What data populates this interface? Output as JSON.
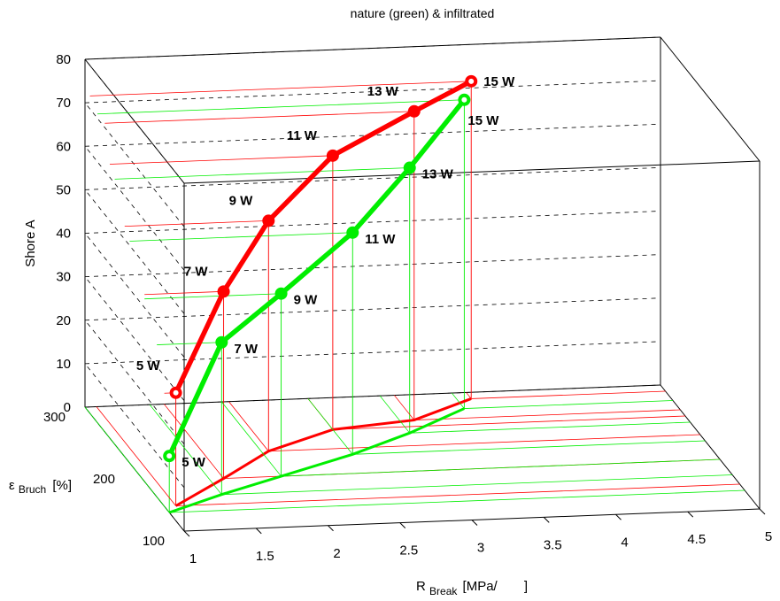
{
  "chart_data": {
    "type": "line",
    "title": "nature (green) & infiltrated",
    "zlabel": "Shore A",
    "ylabel_main": "ε",
    "ylabel_sub": "Bruch",
    "ylabel_unit": "[%]",
    "xlabel_main": "R",
    "xlabel_sub": "Break",
    "xlabel_unit": "[MPa/",
    "xlabel_close": "]",
    "xlim": [
      1,
      5
    ],
    "ylim": [
      100,
      300
    ],
    "zlim": [
      0,
      80
    ],
    "x_ticks": [
      "1",
      "1.5",
      "2",
      "2.5",
      "3",
      "3.5",
      "4",
      "4.5",
      "5"
    ],
    "y_ticks": [
      "100",
      "200",
      "300"
    ],
    "z_ticks": [
      "0",
      "10",
      "20",
      "30",
      "40",
      "50",
      "60",
      "70",
      "80"
    ],
    "grid": "dashed",
    "series": [
      {
        "color": "#ff0000",
        "point_labels": [
          "5 W",
          "7 W",
          "9 W",
          "11 W",
          "13 W",
          "15 W"
        ],
        "x": [
          1.08,
          1.55,
          2.0,
          2.55,
          3.15,
          3.65
        ],
        "y": [
          140,
          180,
          220,
          250,
          260,
          290
        ],
        "z": [
          26,
          43,
          53,
          63,
          71,
          73
        ]
      },
      {
        "color": "#00ee00",
        "point_labels": [
          "5 W",
          "7 W",
          "9 W",
          "11 W",
          "13 W",
          "15 W"
        ],
        "x": [
          1.0,
          1.45,
          1.95,
          2.55,
          3.05,
          3.55
        ],
        "y": [
          130,
          155,
          180,
          210,
          240,
          275
        ],
        "z": [
          13,
          35,
          42,
          51,
          61,
          71
        ]
      }
    ]
  }
}
